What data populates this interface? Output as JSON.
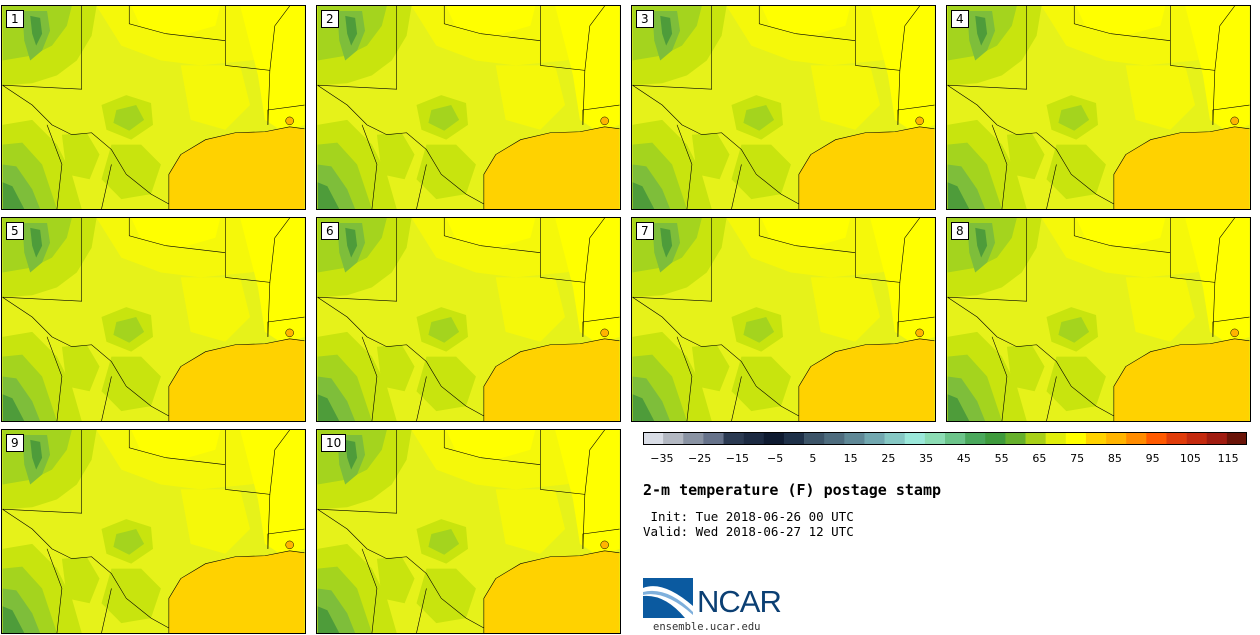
{
  "panels": [
    {
      "label": "1"
    },
    {
      "label": "2"
    },
    {
      "label": "3"
    },
    {
      "label": "4"
    },
    {
      "label": "5"
    },
    {
      "label": "6"
    },
    {
      "label": "7"
    },
    {
      "label": "8"
    },
    {
      "label": "9"
    },
    {
      "label": "10"
    }
  ],
  "title": "2-m temperature (F) postage stamp",
  "init_line": " Init: Tue 2018-06-26 00 UTC",
  "valid_line": "Valid: Wed 2018-06-27 12 UTC",
  "colorbar": {
    "unit": "F",
    "tick_labels": [
      "−35",
      "−25",
      "−15",
      "−5",
      "5",
      "15",
      "25",
      "35",
      "45",
      "55",
      "65",
      "75",
      "85",
      "95",
      "105",
      "115"
    ],
    "tick_values": [
      -35,
      -25,
      -15,
      -5,
      5,
      15,
      25,
      35,
      45,
      55,
      65,
      75,
      85,
      95,
      105,
      115
    ],
    "range": [
      -40,
      120
    ],
    "colors": [
      "#d9dde6",
      "#b3b8c2",
      "#8a93a3",
      "#66728a",
      "#2b3a52",
      "#1c2a42",
      "#0e1a30",
      "#1e3048",
      "#3c5468",
      "#4e6c7e",
      "#5f8896",
      "#72a8b0",
      "#86c8c4",
      "#9be8da",
      "#8cdcb4",
      "#6cc48a",
      "#4aa85c",
      "#3e9a3c",
      "#66b02c",
      "#a8d018",
      "#e0ee0c",
      "#ffff00",
      "#ffd200",
      "#ffb400",
      "#ff8c00",
      "#ff5a00",
      "#e03c0a",
      "#c42a0e",
      "#a01c10",
      "#6a1408"
    ]
  },
  "map_colors": {
    "land": "#e6f21a",
    "warm_land": "#f5f80a",
    "hot_land": "#ffff00",
    "cool_land": "#c8e40e",
    "cooler_land": "#a4d41e",
    "cold_land": "#7ebe3a",
    "coldest_land": "#4e9c3a",
    "gulf": "#ffd200",
    "boundary": "#000000"
  },
  "logo": {
    "name": "NCAR",
    "url": "ensemble.ucar.edu"
  }
}
